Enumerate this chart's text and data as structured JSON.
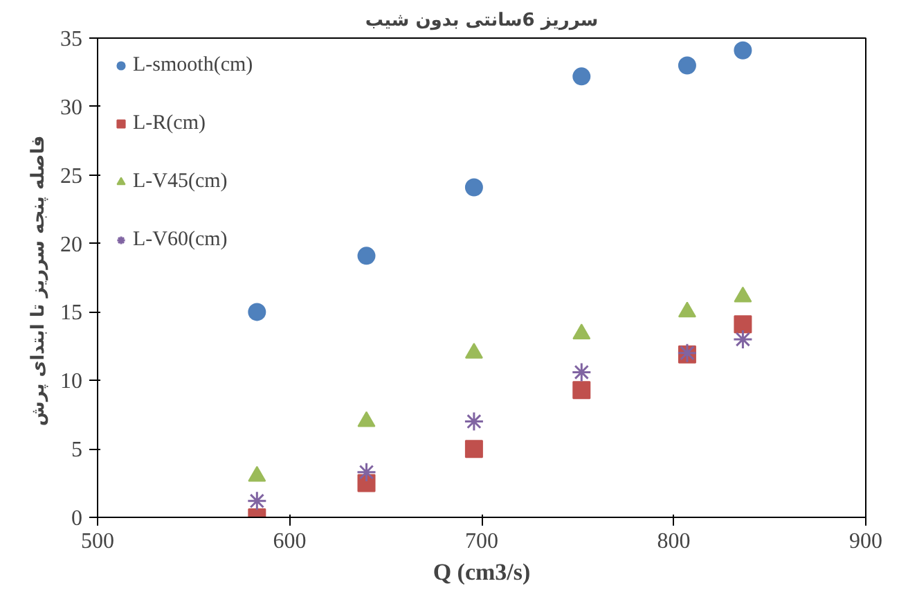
{
  "chart_data": {
    "type": "scatter",
    "title": "سرریز 6سانتی بدون شیب",
    "xlabel": "Q (cm3/s)",
    "ylabel": "فاصله پنجه سرریز  تا ابتدای پرش",
    "x": [
      583,
      640,
      696,
      752,
      807,
      836
    ],
    "series": [
      {
        "name": "L-smooth(cm)",
        "color": "#4f81bd",
        "marker": "circle",
        "values": [
          15,
          19.1,
          24.1,
          32.2,
          33,
          34.1
        ]
      },
      {
        "name": "L-R(cm)",
        "color": "#c0504d",
        "marker": "square",
        "values": [
          0,
          2.5,
          5,
          9.3,
          11.9,
          14.1
        ]
      },
      {
        "name": "L-V45(cm)",
        "color": "#9bbb59",
        "marker": "triangle",
        "values": [
          3,
          7,
          12,
          13.4,
          15,
          16.1
        ]
      },
      {
        "name": "L-V60(cm)",
        "color": "#8064a2",
        "marker": "cross",
        "values": [
          1.2,
          3.3,
          7,
          10.6,
          12,
          13
        ]
      }
    ],
    "xlim": [
      500,
      900
    ],
    "xticks": [
      500,
      600,
      700,
      800,
      900
    ],
    "ylim": [
      0,
      35
    ],
    "yticks": [
      0,
      5,
      10,
      15,
      20,
      25,
      30,
      35
    ],
    "grid": false,
    "legend": "top left"
  }
}
